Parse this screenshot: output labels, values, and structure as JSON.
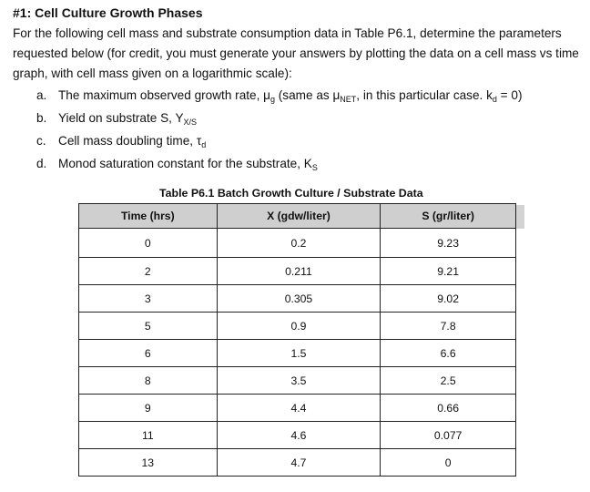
{
  "heading": "#1: Cell Culture Growth Phases",
  "intro": "For the following cell mass and substrate consumption data in Table P6.1, determine the parameters requested below (for credit,  you must generate your answers by plotting the data on a cell mass vs time graph, with cell mass given on a logarithmic scale):",
  "items": [
    {
      "letter": "a.",
      "text": "The maximum observed growth rate, μ",
      "sub": "g",
      "text2": " (same as μ",
      "sub2": "NET",
      "text3": ", in this particular case.  k",
      "sub3": "d",
      "text4": " = 0)"
    },
    {
      "letter": "b.",
      "text": "Yield on substrate S, Y",
      "sub": "X/S"
    },
    {
      "letter": "c.",
      "text": "Cell mass doubling time, τ",
      "sub": "d"
    },
    {
      "letter": "d.",
      "text": "Monod saturation constant for the substrate, K",
      "sub": "S"
    }
  ],
  "table": {
    "caption": "Table P6.1  Batch Growth Culture / Substrate Data",
    "headers": [
      "Time (hrs)",
      "X (gdw/liter)",
      "S (gr/liter)"
    ],
    "rows": [
      [
        "0",
        "0.2",
        "9.23"
      ],
      [
        "2",
        "0.211",
        "9.21"
      ],
      [
        "3",
        "0.305",
        "9.02"
      ],
      [
        "5",
        "0.9",
        "7.8"
      ],
      [
        "6",
        "1.5",
        "6.6"
      ],
      [
        "8",
        "3.5",
        "2.5"
      ],
      [
        "9",
        "4.4",
        "0.66"
      ],
      [
        "11",
        "4.6",
        "0.077"
      ],
      [
        "13",
        "4.7",
        "0"
      ]
    ]
  }
}
